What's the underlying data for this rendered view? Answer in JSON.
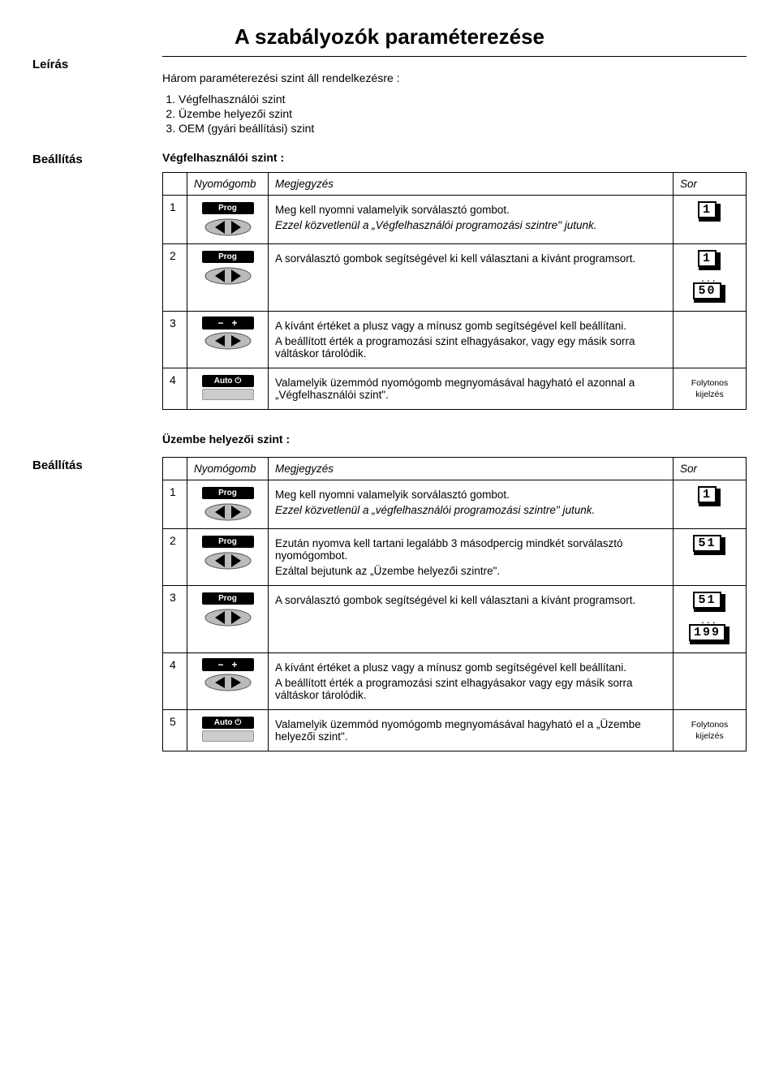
{
  "title": "A szabályozók paraméterezése",
  "leiras_label": "Leírás",
  "beallitas_label": "Beállítás",
  "intro": "Három paraméterezési szint áll rendelkezésre :",
  "levels": [
    "Végfelhasználói szint",
    "Üzembe helyezői szint",
    "OEM (gyári beállítási) szint"
  ],
  "section1_heading": "Végfelhasználói szint :",
  "section2_heading": "Üzembe helyezői szint :",
  "headers": {
    "nyomogomb": "Nyomógomb",
    "megjegyzes": "Megjegyzés",
    "sor": "Sor"
  },
  "btn": {
    "prog": "Prog",
    "auto": "Auto",
    "minus": "−",
    "plus": "+"
  },
  "table1": {
    "rows": [
      {
        "num": "1",
        "icon": "prog",
        "note_main": "Meg kell nyomni valamelyik sorválasztó gombot.",
        "note_em": "Ezzel közvetlenül a „Végfelhasználói programozási szintre\" jutunk.",
        "sor_displays": [
          "1"
        ]
      },
      {
        "num": "2",
        "icon": "prog",
        "note_main": "A sorválasztó gombok segítségével ki kell választani a kívánt programsort.",
        "sor_displays": [
          "1",
          "...",
          "50"
        ]
      },
      {
        "num": "3",
        "icon": "plusminus",
        "note_main": "A kívánt értéket a plusz vagy a mínusz gomb segítségével kell beállítani.",
        "note_extra": "A beállított érték a programozási szint elhagyásakor, vagy egy másik sorra váltáskor tárolódik."
      },
      {
        "num": "4",
        "icon": "auto",
        "note_main": "Valamelyik üzemmód nyomógomb megnyomásával hagyható el azonnal a „Végfelhasználói szint\".",
        "sor_text1": "Folytonos",
        "sor_text2": "kijelzés"
      }
    ]
  },
  "table2": {
    "rows": [
      {
        "num": "1",
        "icon": "prog",
        "note_main": "Meg kell nyomni valamelyik sorválasztó gombot.",
        "note_em": "Ezzel közvetlenül a „végfelhasználói programozási szintre\" jutunk.",
        "sor_displays": [
          "1"
        ]
      },
      {
        "num": "2",
        "icon": "prog",
        "note_main": "Ezután nyomva kell tartani legalább 3 másodpercig mindkét sorválasztó nyomógombot.",
        "note_extra": "Ezáltal bejutunk az „Üzembe helyezői szintre\".",
        "sor_displays": [
          "51"
        ]
      },
      {
        "num": "3",
        "icon": "prog",
        "note_main": "A sorválasztó gombok segítségével ki kell választani a kívánt programsort.",
        "sor_displays": [
          "51",
          "...",
          "199"
        ]
      },
      {
        "num": "4",
        "icon": "plusminus",
        "note_main": "A kívánt értéket a plusz vagy a mínusz gomb segítségével kell beállítani.",
        "note_extra": "A beállított érték a programozási szint elhagyásakor vagy egy másik sorra váltáskor tárolódik."
      },
      {
        "num": "5",
        "icon": "auto",
        "note_main": "Valamelyik üzemmód nyomógomb megnyomásával hagyható el a „Üzembe helyezői szint\".",
        "sor_text1": "Folytonos",
        "sor_text2": "kijelzés"
      }
    ]
  }
}
